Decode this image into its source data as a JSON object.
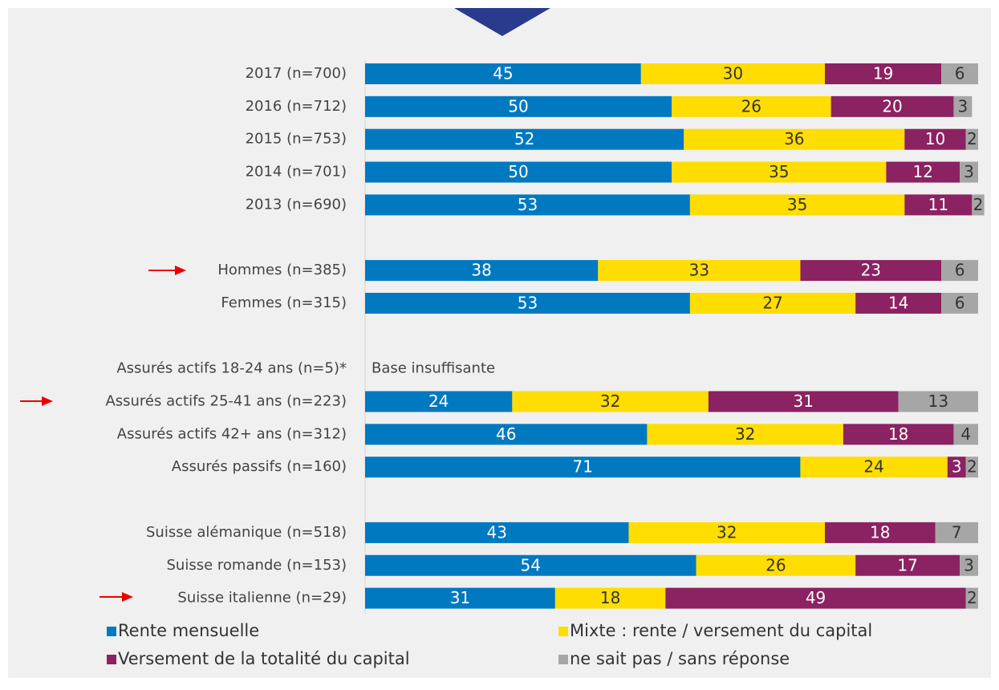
{
  "chart_data": {
    "type": "stacked_barh",
    "categories": [
      "2017 (n=700)",
      "2016 (n=712)",
      "2015 (n=753)",
      "2014 (n=701)",
      "2013 (n=690)",
      null,
      "Hommes (n=385)",
      "Femmes (n=315)",
      null,
      "Assurés actifs 18-24 ans (n=5)*",
      "Assurés actifs 25-41 ans (n=223)",
      "Assurés actifs 42+ ans (n=312)",
      "Assurés passifs (n=160)",
      null,
      "Suisse alémanique (n=518)",
      "Suisse romande (n=153)",
      "Suisse italienne (n=29)"
    ],
    "series": [
      {
        "name": "Rente mensuelle",
        "color": "#0079c1",
        "values": [
          45,
          50,
          52,
          50,
          53,
          null,
          38,
          53,
          null,
          null,
          24,
          46,
          71,
          null,
          43,
          54,
          31
        ]
      },
      {
        "name": "Mixte : rente / versement du capital",
        "color": "#ffdd00",
        "values": [
          30,
          26,
          36,
          35,
          35,
          null,
          33,
          27,
          null,
          null,
          32,
          32,
          24,
          null,
          32,
          26,
          18
        ]
      },
      {
        "name": "Versement de la totalité du capital",
        "color": "#8b2262",
        "values": [
          19,
          20,
          10,
          12,
          11,
          null,
          23,
          14,
          null,
          null,
          31,
          18,
          3,
          null,
          18,
          17,
          49
        ]
      },
      {
        "name": "ne sait pas / sans réponse",
        "color": "#a6a6a6",
        "values": [
          6,
          3,
          2,
          3,
          2,
          null,
          6,
          6,
          null,
          null,
          13,
          4,
          2,
          null,
          7,
          3,
          2
        ]
      }
    ],
    "annotation": "Base insuffisante",
    "xlim": [
      0,
      100
    ]
  }
}
